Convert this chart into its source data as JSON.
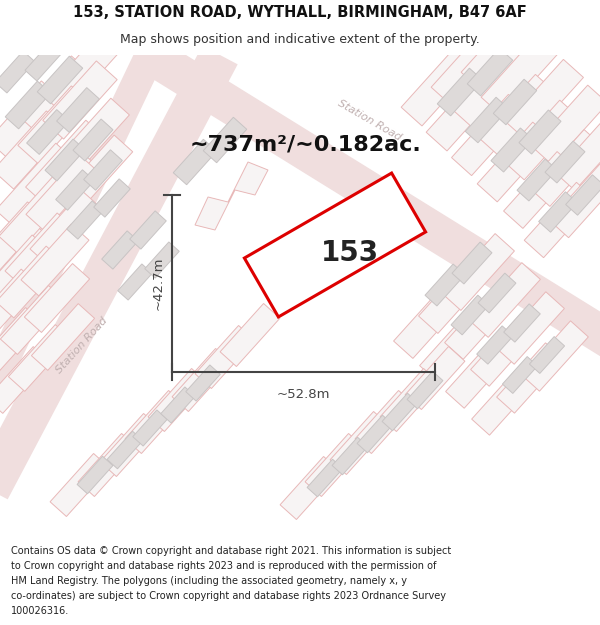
{
  "title_line1": "153, STATION ROAD, WYTHALL, BIRMINGHAM, B47 6AF",
  "title_line2": "Map shows position and indicative extent of the property.",
  "area_label": "~737m²/~0.182ac.",
  "property_number": "153",
  "dim_width": "~52.8m",
  "dim_height": "~42.7m",
  "footer_lines": [
    "Contains OS data © Crown copyright and database right 2021. This information is subject",
    "to Crown copyright and database rights 2023 and is reproduced with the permission of",
    "HM Land Registry. The polygons (including the associated geometry, namely x, y",
    "co-ordinates) are subject to Crown copyright and database rights 2023 Ordnance Survey",
    "100026316."
  ],
  "bg_color": "#ffffff",
  "map_bg": "#f7f4f4",
  "parcel_fill": "#f7f4f4",
  "parcel_stroke": "#e8b8b8",
  "building_fill": "#dedad9",
  "building_stroke": "#c8c4c4",
  "property_fill": "#ffffff",
  "property_stroke": "#dd0000",
  "dim_color": "#444444",
  "road_label_color": "#c0b0b0",
  "title_fontsize": 10.5,
  "subtitle_fontsize": 9,
  "area_fontsize": 16,
  "number_fontsize": 20,
  "footer_fontsize": 7.0
}
